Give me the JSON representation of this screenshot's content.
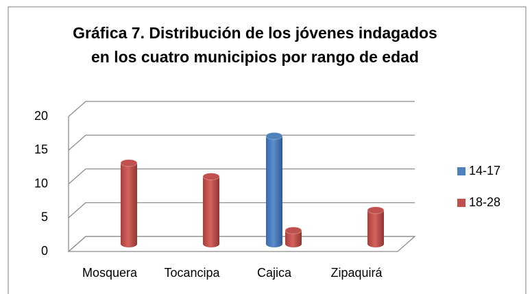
{
  "chart_data": {
    "type": "bar3d",
    "title": [
      "Gráfica 7. Distribución de los jóvenes indagados",
      "en los cuatro municipios  por rango de edad"
    ],
    "categories": [
      "Mosquera",
      "Tocancipa",
      "Cajica",
      "Zipaquirá"
    ],
    "series": [
      {
        "name": "14-17",
        "color": "#4f81bd",
        "values": [
          0,
          0,
          16,
          0
        ]
      },
      {
        "name": "18-28",
        "color": "#c0504d",
        "values": [
          12,
          10,
          2,
          5
        ]
      }
    ],
    "ylim": [
      0,
      20
    ],
    "yticks": [
      0,
      5,
      10,
      15,
      20
    ],
    "grid": true,
    "legend": "right"
  }
}
